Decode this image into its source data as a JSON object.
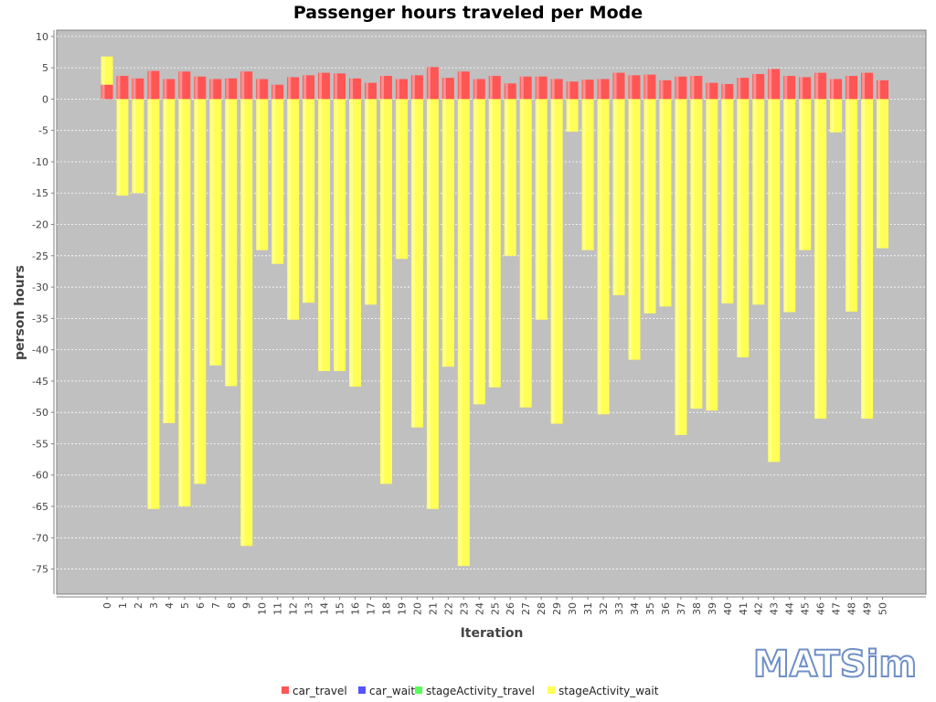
{
  "logo_text": "MATSim",
  "colors": {
    "car_travel": "#ff5555",
    "car_wait": "#5555ff",
    "stageActivity_travel": "#55ff55",
    "stageActivity_wait": "#ffff55",
    "plot_background": "#c0c0c0"
  },
  "chart_data": {
    "type": "bar",
    "stacked": true,
    "title": "Passenger hours traveled per Mode",
    "xlabel": "Iteration",
    "ylabel": "person hours",
    "ylim": [
      -79,
      11
    ],
    "yticks": [
      10,
      5,
      0,
      -5,
      -10,
      -15,
      -20,
      -25,
      -30,
      -35,
      -40,
      -45,
      -50,
      -55,
      -60,
      -65,
      -70,
      -75
    ],
    "grid": true,
    "legend_position": "bottom-center",
    "categories": [
      "0",
      "1",
      "2",
      "3",
      "4",
      "5",
      "6",
      "7",
      "8",
      "9",
      "10",
      "11",
      "12",
      "13",
      "14",
      "15",
      "16",
      "17",
      "18",
      "19",
      "20",
      "21",
      "22",
      "23",
      "24",
      "25",
      "26",
      "27",
      "28",
      "29",
      "30",
      "31",
      "32",
      "33",
      "34",
      "35",
      "36",
      "37",
      "38",
      "39",
      "40",
      "41",
      "42",
      "43",
      "44",
      "45",
      "46",
      "47",
      "48",
      "49",
      "50"
    ],
    "series": [
      {
        "name": "car_travel",
        "values": [
          2.3,
          3.7,
          3.3,
          4.5,
          3.2,
          4.4,
          3.6,
          3.2,
          3.3,
          4.4,
          3.2,
          2.3,
          3.5,
          3.8,
          4.2,
          4.1,
          3.3,
          2.6,
          3.7,
          3.2,
          3.8,
          5.1,
          3.4,
          4.4,
          3.2,
          3.7,
          2.5,
          3.6,
          3.6,
          3.2,
          2.8,
          3.1,
          3.2,
          4.2,
          3.8,
          3.9,
          3.0,
          3.6,
          3.7,
          2.6,
          2.4,
          3.4,
          4.0,
          4.8,
          3.7,
          3.5,
          4.2,
          3.2,
          3.7,
          4.2,
          3.0
        ]
      },
      {
        "name": "car_wait",
        "values": [
          0,
          0,
          0,
          0,
          0,
          0,
          0,
          0,
          0,
          0,
          0,
          0,
          0,
          0,
          0,
          0,
          0,
          0,
          0,
          0,
          0,
          0,
          0,
          0,
          0,
          0,
          0,
          0,
          0,
          0,
          0,
          0,
          0,
          0,
          0,
          0,
          0,
          0,
          0,
          0,
          0,
          0,
          0,
          0,
          0,
          0,
          0,
          0,
          0,
          0,
          0
        ]
      },
      {
        "name": "stageActivity_travel",
        "values": [
          0,
          0,
          0,
          0,
          0,
          0,
          0,
          0,
          0,
          0,
          0,
          0,
          0,
          0,
          0,
          0,
          0,
          0,
          0,
          0,
          0,
          0,
          0,
          0,
          0,
          0,
          0,
          0,
          0,
          0,
          0,
          0,
          0,
          0,
          0,
          0,
          0,
          0,
          0,
          0,
          0,
          0,
          0,
          0,
          0,
          0,
          0,
          0,
          0,
          0,
          0
        ]
      },
      {
        "name": "stageActivity_wait",
        "values": [
          4.5,
          -15.4,
          -15.0,
          -65.4,
          -51.7,
          -65.0,
          -61.4,
          -42.5,
          -45.8,
          -71.3,
          -24.1,
          -26.3,
          -35.2,
          -32.5,
          -43.4,
          -43.4,
          -45.9,
          -32.8,
          -61.4,
          -25.5,
          -52.4,
          -65.4,
          -42.7,
          -74.5,
          -48.7,
          -46.0,
          -25.0,
          -49.2,
          -35.2,
          -51.8,
          -5.2,
          -24.1,
          -50.3,
          -31.3,
          -41.6,
          -34.2,
          -33.1,
          -53.6,
          -49.4,
          -49.7,
          -32.6,
          -41.2,
          -32.8,
          -57.9,
          -34.0,
          -24.1,
          -51.0,
          -5.3,
          -33.9,
          -51.0,
          -23.8
        ]
      }
    ]
  }
}
